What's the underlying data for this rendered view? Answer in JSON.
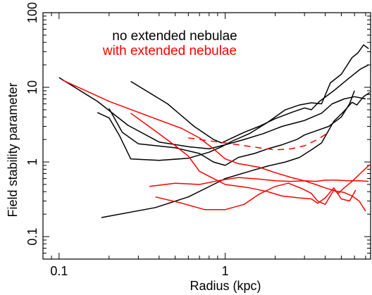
{
  "chart_data": {
    "type": "line",
    "title": "",
    "xlabel": "Radius (kpc)",
    "ylabel": "Field stability parameter",
    "xscale": "log",
    "yscale": "log",
    "xlim": [
      0.08,
      7.5
    ],
    "ylim": [
      0.05,
      100
    ],
    "xticks": [
      0.1,
      1
    ],
    "xtick_labels": [
      "0.1",
      "1"
    ],
    "yticks": [
      0.1,
      1,
      10,
      100
    ],
    "ytick_labels": [
      "0.1",
      "1",
      "10",
      "100"
    ],
    "grid": false,
    "legend": {
      "placement": "top-center",
      "entries": [
        {
          "label": "no extended nebulae",
          "color": "#000000"
        },
        {
          "label": "with extended nebulae",
          "color": "#ff0000"
        }
      ]
    },
    "colors": {
      "no_extended": "#000000",
      "with_extended": "#ff0000"
    },
    "series": [
      {
        "group": "no_extended",
        "style": "solid",
        "points": [
          [
            0.1,
            13.5
          ],
          [
            0.17,
            6.5
          ],
          [
            0.26,
            3.1
          ],
          [
            0.4,
            1.85
          ],
          [
            0.6,
            1.6
          ],
          [
            0.8,
            1.5
          ],
          [
            1.0,
            1.7
          ],
          [
            1.3,
            2.0
          ],
          [
            1.7,
            2.4
          ],
          [
            2.2,
            3.0
          ],
          [
            3.0,
            3.6
          ],
          [
            3.8,
            4.5
          ],
          [
            4.4,
            6.0
          ],
          [
            5.2,
            7.0
          ],
          [
            6.0,
            7.5
          ],
          [
            7.0,
            7.0
          ]
        ]
      },
      {
        "group": "no_extended",
        "style": "solid",
        "points": [
          [
            0.27,
            12.0
          ],
          [
            0.45,
            6.0
          ],
          [
            0.65,
            3.0
          ],
          [
            0.85,
            2.0
          ],
          [
            0.95,
            1.8
          ],
          [
            1.1,
            2.1
          ],
          [
            1.3,
            2.5
          ],
          [
            1.6,
            3.0
          ],
          [
            2.0,
            3.8
          ],
          [
            2.5,
            4.6
          ],
          [
            3.0,
            5.3
          ],
          [
            3.3,
            5.0
          ],
          [
            3.7,
            6.5
          ],
          [
            4.5,
            9.0
          ],
          [
            5.5,
            13.0
          ],
          [
            6.5,
            17.5
          ],
          [
            7.3,
            20.0
          ]
        ]
      },
      {
        "group": "no_extended",
        "style": "solid",
        "points": [
          [
            0.17,
            4.6
          ],
          [
            0.2,
            3.9
          ],
          [
            0.23,
            2.3
          ],
          [
            0.27,
            1.1
          ],
          [
            0.4,
            1.05
          ],
          [
            0.6,
            1.12
          ],
          [
            0.8,
            1.35
          ],
          [
            0.95,
            1.6
          ],
          [
            1.1,
            1.9
          ],
          [
            1.4,
            2.4
          ],
          [
            1.8,
            3.4
          ],
          [
            2.3,
            5.0
          ],
          [
            2.8,
            5.8
          ],
          [
            3.3,
            6.2
          ],
          [
            3.8,
            6.0
          ],
          [
            4.3,
            11.5
          ],
          [
            5.0,
            15.0
          ],
          [
            5.8,
            25.0
          ],
          [
            6.3,
            29.0
          ],
          [
            6.8,
            37.0
          ],
          [
            7.3,
            33.0
          ]
        ]
      },
      {
        "group": "no_extended",
        "style": "solid",
        "points": [
          [
            0.2,
            5.2
          ],
          [
            0.24,
            2.5
          ],
          [
            0.3,
            1.75
          ],
          [
            0.5,
            1.55
          ],
          [
            0.7,
            1.3
          ],
          [
            0.85,
            1.0
          ],
          [
            1.0,
            0.9
          ],
          [
            1.2,
            1.15
          ],
          [
            1.5,
            1.3
          ],
          [
            1.8,
            1.5
          ],
          [
            2.2,
            1.7
          ],
          [
            2.7,
            2.0
          ],
          [
            3.0,
            2.3
          ],
          [
            3.5,
            2.6
          ],
          [
            4.2,
            3.0
          ],
          [
            5.0,
            4.0
          ],
          [
            5.6,
            6.0
          ],
          [
            6.0,
            9.0
          ]
        ]
      },
      {
        "group": "no_extended",
        "style": "solid",
        "points": [
          [
            0.18,
            0.18
          ],
          [
            0.38,
            0.245
          ],
          [
            0.6,
            0.34
          ],
          [
            0.85,
            0.5
          ],
          [
            1.0,
            0.6
          ],
          [
            1.4,
            0.75
          ],
          [
            1.8,
            0.88
          ],
          [
            2.3,
            1.0
          ],
          [
            2.8,
            1.15
          ],
          [
            3.3,
            1.45
          ],
          [
            3.8,
            1.8
          ],
          [
            4.5,
            3.5
          ],
          [
            5.2,
            4.8
          ],
          [
            5.8,
            6.3
          ],
          [
            6.2,
            5.8
          ],
          [
            6.8,
            7.5
          ],
          [
            7.4,
            8.5
          ]
        ]
      },
      {
        "group": "with_extended",
        "style": "solid",
        "points": [
          [
            0.105,
            12.5
          ],
          [
            0.2,
            6.5
          ],
          [
            0.38,
            3.8
          ],
          [
            0.55,
            2.8
          ],
          [
            0.7,
            2.1
          ],
          [
            0.85,
            1.5
          ],
          [
            1.0,
            1.1
          ],
          [
            1.2,
            0.95
          ],
          [
            1.6,
            0.85
          ],
          [
            2.0,
            0.72
          ],
          [
            2.5,
            0.62
          ],
          [
            3.0,
            0.56
          ],
          [
            3.5,
            0.5
          ],
          [
            4.0,
            0.45
          ],
          [
            4.6,
            0.41
          ],
          [
            5.2,
            0.39
          ],
          [
            5.8,
            0.35
          ],
          [
            6.4,
            0.3
          ],
          [
            7.0,
            0.22
          ]
        ]
      },
      {
        "group": "with_extended",
        "style": "solid",
        "points": [
          [
            0.27,
            4.5
          ],
          [
            0.38,
            2.6
          ],
          [
            0.5,
            1.65
          ],
          [
            0.6,
            1.2
          ],
          [
            0.7,
            0.75
          ],
          [
            0.85,
            0.6
          ],
          [
            1.0,
            0.5
          ],
          [
            1.4,
            0.45
          ],
          [
            1.8,
            0.4
          ],
          [
            2.2,
            0.35
          ],
          [
            2.8,
            0.33
          ],
          [
            3.3,
            0.32
          ],
          [
            3.6,
            0.28
          ],
          [
            4.0,
            0.33
          ],
          [
            4.5,
            0.45
          ],
          [
            5.0,
            0.32
          ],
          [
            5.6,
            0.3
          ],
          [
            6.1,
            0.42
          ]
        ]
      },
      {
        "group": "with_extended",
        "style": "solid",
        "points": [
          [
            0.35,
            0.47
          ],
          [
            0.5,
            0.52
          ],
          [
            0.7,
            0.5
          ],
          [
            0.9,
            0.56
          ],
          [
            1.2,
            0.62
          ],
          [
            1.6,
            0.59
          ],
          [
            2.0,
            0.56
          ],
          [
            2.5,
            0.55
          ],
          [
            3.0,
            0.56
          ],
          [
            3.5,
            0.55
          ],
          [
            4.0,
            0.57
          ],
          [
            4.7,
            0.57
          ],
          [
            5.5,
            0.56
          ],
          [
            6.5,
            0.56
          ],
          [
            7.3,
            0.55
          ]
        ]
      },
      {
        "group": "with_extended",
        "style": "solid",
        "points": [
          [
            0.38,
            0.34
          ],
          [
            0.55,
            0.28
          ],
          [
            0.75,
            0.23
          ],
          [
            1.0,
            0.23
          ],
          [
            1.3,
            0.27
          ],
          [
            1.6,
            0.37
          ],
          [
            2.0,
            0.47
          ],
          [
            2.4,
            0.52
          ],
          [
            2.9,
            0.44
          ],
          [
            3.3,
            0.38
          ],
          [
            3.6,
            0.3
          ],
          [
            4.0,
            0.27
          ],
          [
            4.5,
            0.42
          ],
          [
            4.8,
            0.38
          ],
          [
            5.2,
            0.45
          ],
          [
            5.8,
            0.55
          ],
          [
            6.5,
            0.7
          ],
          [
            7.4,
            0.92
          ]
        ]
      },
      {
        "group": "with_extended",
        "style": "dashed",
        "points": [
          [
            0.6,
            2.1
          ],
          [
            0.9,
            1.85
          ],
          [
            1.2,
            1.7
          ],
          [
            1.6,
            1.55
          ],
          [
            2.0,
            1.45
          ],
          [
            2.5,
            1.5
          ],
          [
            3.0,
            1.65
          ],
          [
            3.6,
            2.0
          ],
          [
            4.2,
            2.5
          ]
        ]
      }
    ]
  }
}
